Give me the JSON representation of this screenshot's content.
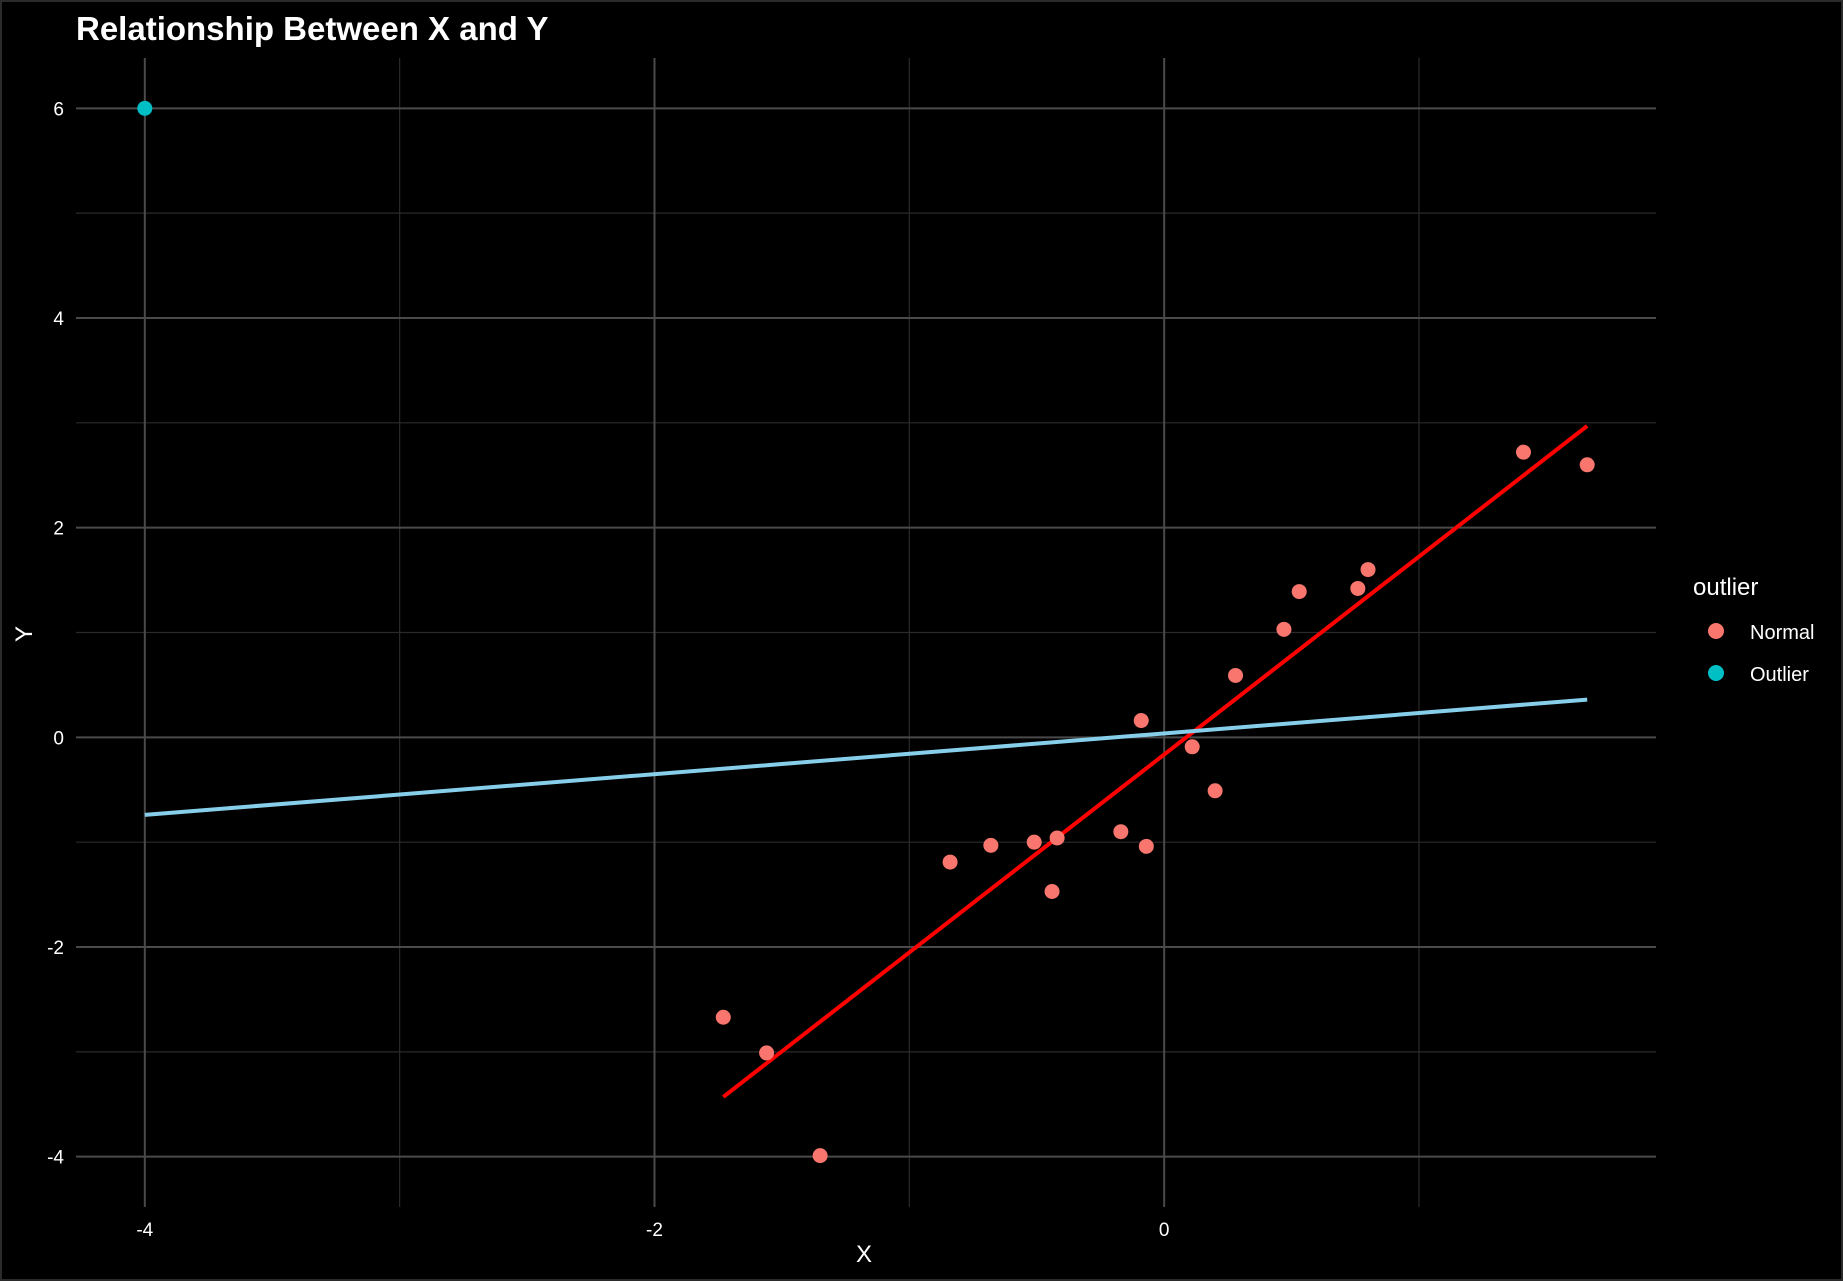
{
  "chart_data": {
    "type": "scatter",
    "title": "Relationship Between X and Y",
    "xlabel": "X",
    "ylabel": "Y",
    "xlim": [
      -4.27,
      1.93
    ],
    "ylim": [
      -4.48,
      6.48
    ],
    "x_ticks": [
      -4,
      -2,
      0
    ],
    "x_tick_labels": [
      "-4",
      "-2",
      "0"
    ],
    "y_ticks": [
      -4,
      -2,
      0,
      2,
      4,
      6
    ],
    "y_tick_labels": [
      "-4",
      "-2",
      "0",
      "2",
      "4",
      "6"
    ],
    "grid": true,
    "legend": {
      "title": "outlier",
      "placement": "right",
      "entries": [
        {
          "label": "Normal",
          "color": "#F8766D"
        },
        {
          "label": "Outlier",
          "color": "#00BFC4"
        }
      ]
    },
    "series": [
      {
        "name": "Normal",
        "color": "#F8766D",
        "points": [
          {
            "x": -1.73,
            "y": -2.67
          },
          {
            "x": -1.56,
            "y": -3.01
          },
          {
            "x": -1.35,
            "y": -3.99
          },
          {
            "x": -0.84,
            "y": -1.19
          },
          {
            "x": -0.68,
            "y": -1.03
          },
          {
            "x": -0.51,
            "y": -1.0
          },
          {
            "x": -0.44,
            "y": -1.47
          },
          {
            "x": -0.42,
            "y": -0.96
          },
          {
            "x": -0.17,
            "y": -0.9
          },
          {
            "x": -0.09,
            "y": 0.16
          },
          {
            "x": -0.07,
            "y": -1.04
          },
          {
            "x": 0.11,
            "y": -0.09
          },
          {
            "x": 0.2,
            "y": -0.51
          },
          {
            "x": 0.28,
            "y": 0.59
          },
          {
            "x": 0.47,
            "y": 1.03
          },
          {
            "x": 0.53,
            "y": 1.39
          },
          {
            "x": 0.76,
            "y": 1.42
          },
          {
            "x": 0.8,
            "y": 1.6
          },
          {
            "x": 1.41,
            "y": 2.72
          },
          {
            "x": 1.66,
            "y": 2.6
          }
        ]
      },
      {
        "name": "Outlier",
        "color": "#00BFC4",
        "points": [
          {
            "x": -4.0,
            "y": 6.0
          }
        ]
      }
    ],
    "lines": [
      {
        "color": "#FF0000",
        "x": [
          -1.73,
          1.66
        ],
        "y": [
          -3.43,
          2.97
        ]
      },
      {
        "color": "#87CEEB",
        "x": [
          -4.0,
          1.66
        ],
        "y": [
          -0.74,
          0.36
        ]
      }
    ]
  }
}
